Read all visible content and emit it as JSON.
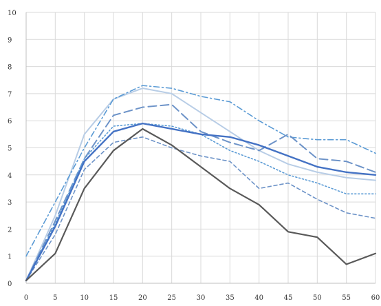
{
  "chart_data": {
    "type": "line",
    "x": [
      0,
      5,
      10,
      15,
      20,
      25,
      30,
      35,
      40,
      45,
      50,
      55,
      60
    ],
    "xlim": [
      0,
      60
    ],
    "ylim": [
      0,
      10
    ],
    "x_ticks": [
      "0",
      "5",
      "10",
      "15",
      "20",
      "25",
      "30",
      "35",
      "40",
      "45",
      "50",
      "55",
      "60"
    ],
    "y_ticks": [
      "0",
      "1",
      "2",
      "3",
      "4",
      "5",
      "6",
      "7",
      "8",
      "9",
      "10"
    ],
    "grid": true,
    "legend": "none",
    "series": [
      {
        "color": "#b8cde6",
        "style": "solid",
        "width": 2,
        "values": [
          0.1,
          2.5,
          5.5,
          6.8,
          7.2,
          7.0,
          6.3,
          5.6,
          4.9,
          4.4,
          4.1,
          3.9,
          3.8
        ]
      },
      {
        "color": "#5b9bd5",
        "style": "dashdot",
        "width": 1.6,
        "values": [
          1.0,
          3.0,
          5.0,
          6.8,
          7.3,
          7.2,
          6.9,
          6.7,
          6.0,
          5.4,
          5.3,
          5.3,
          4.8
        ]
      },
      {
        "color": "#6d93c8",
        "style": "longdash",
        "width": 2,
        "values": [
          0.1,
          2.3,
          4.6,
          6.2,
          6.5,
          6.6,
          5.6,
          5.2,
          4.9,
          5.5,
          4.6,
          4.5,
          4.1
        ]
      },
      {
        "color": "#5b9bd5",
        "style": "dotted",
        "width": 1.6,
        "values": [
          0.1,
          2.2,
          4.6,
          5.8,
          5.9,
          5.8,
          5.5,
          4.9,
          4.5,
          4.0,
          3.7,
          3.3,
          3.3
        ]
      },
      {
        "color": "#6d93c8",
        "style": "dashed",
        "width": 1.6,
        "values": [
          0.1,
          1.8,
          4.2,
          5.2,
          5.4,
          5.0,
          4.7,
          4.5,
          3.5,
          3.7,
          3.1,
          2.6,
          2.4
        ]
      },
      {
        "color": "#4472c4",
        "style": "solid",
        "width": 2.4,
        "values": [
          0.1,
          2.1,
          4.5,
          5.6,
          5.9,
          5.7,
          5.5,
          5.4,
          5.1,
          4.7,
          4.3,
          4.1,
          4.0
        ]
      },
      {
        "color": "#595959",
        "style": "solid",
        "width": 2.2,
        "values": [
          0.1,
          1.1,
          3.5,
          4.9,
          5.7,
          5.1,
          4.3,
          3.5,
          2.9,
          1.9,
          1.7,
          0.7,
          1.1
        ]
      }
    ]
  }
}
